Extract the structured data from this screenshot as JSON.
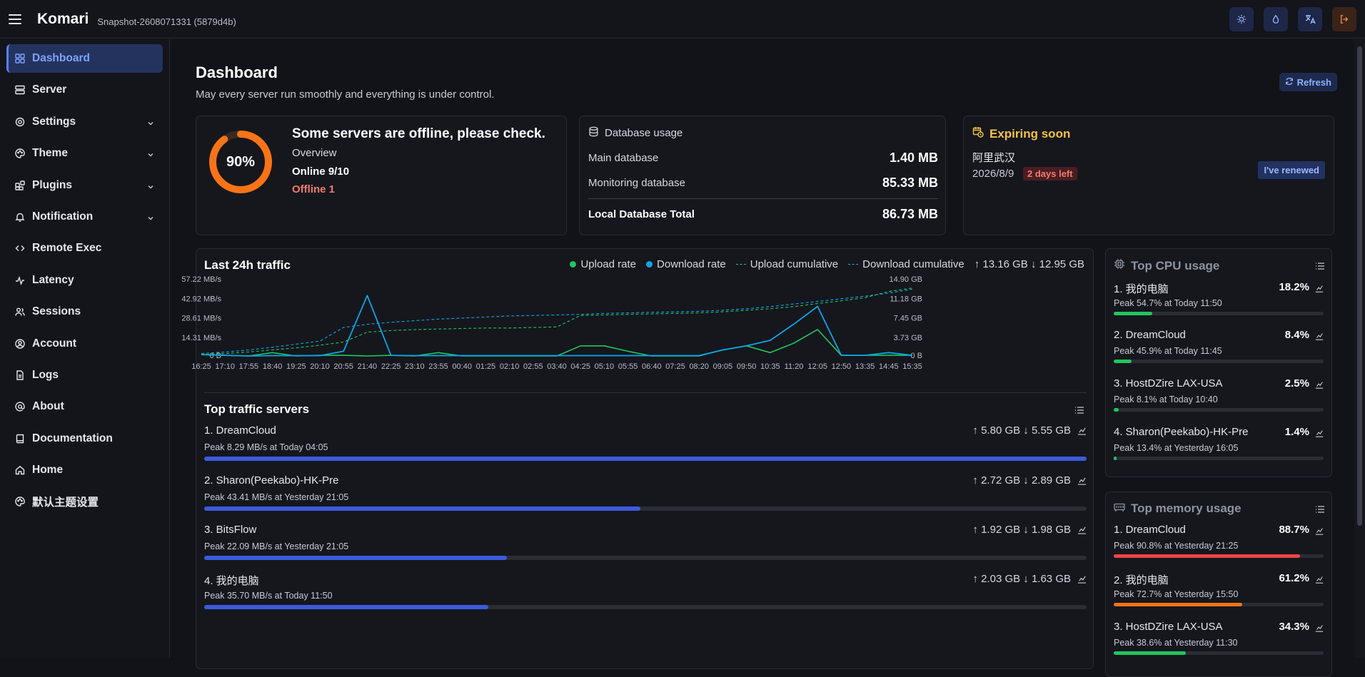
{
  "app": {
    "brand": "Komari",
    "snapshot": "Snapshot-2608071331 (5879d4b)"
  },
  "top_icons": [
    "sun-icon",
    "droplet-icon",
    "translate-icon",
    "logout-icon"
  ],
  "sidebar": {
    "items": [
      {
        "label": "Dashboard",
        "icon": "grid-icon",
        "active": true
      },
      {
        "label": "Server",
        "icon": "server-icon"
      },
      {
        "label": "Settings",
        "icon": "gear-icon",
        "expandable": true
      },
      {
        "label": "Theme",
        "icon": "palette-icon",
        "expandable": true
      },
      {
        "label": "Plugins",
        "icon": "puzzle-icon",
        "expandable": true
      },
      {
        "label": "Notification",
        "icon": "bell-icon",
        "expandable": true
      },
      {
        "label": "Remote Exec",
        "icon": "code-icon"
      },
      {
        "label": "Latency",
        "icon": "pulse-icon"
      },
      {
        "label": "Sessions",
        "icon": "users-icon"
      },
      {
        "label": "Account",
        "icon": "user-circle-icon"
      },
      {
        "label": "Logs",
        "icon": "file-icon"
      },
      {
        "label": "About",
        "icon": "at-icon"
      },
      {
        "label": "Documentation",
        "icon": "book-icon"
      },
      {
        "label": "Home",
        "icon": "home-icon"
      },
      {
        "label": "默认主题设置",
        "icon": "palette-icon"
      }
    ]
  },
  "header": {
    "title": "Dashboard",
    "subtitle": "May every server run smoothly and everything is under control.",
    "refresh_label": "Refresh"
  },
  "status_card": {
    "percent": 0.9,
    "percent_label": "90%",
    "heading": "Some servers are offline, please check.",
    "overview_label": "Overview",
    "online": "Online 9/10",
    "offline": "Offline 1",
    "ring_color": "#f97316"
  },
  "database_card": {
    "title": "Database usage",
    "rows": [
      {
        "label": "Main database",
        "value": "1.40 MB"
      },
      {
        "label": "Monitoring database",
        "value": "85.33 MB"
      }
    ],
    "total": {
      "label": "Local Database Total",
      "value": "86.73 MB"
    }
  },
  "expiring_card": {
    "title": "Expiring soon",
    "server": "阿里武汉",
    "date": "2026/8/9",
    "badge": "2 days left",
    "button": "I've renewed"
  },
  "traffic": {
    "title": "Last 24h traffic",
    "legend": {
      "upload_rate": "Upload rate",
      "download_rate": "Download rate",
      "upload_cumulative": "Upload cumulative",
      "download_cumulative": "Download cumulative",
      "totals": "↑ 13.16 GB ↓ 12.95 GB"
    },
    "colors": {
      "upload": "#22c55e",
      "download": "#0ea5e9"
    },
    "top_servers_title": "Top traffic servers",
    "top_servers": [
      {
        "name": "1. DreamCloud",
        "amount": "↑ 5.80 GB ↓ 5.55 GB",
        "peak": "Peak 8.29 MB/s at Today 04:05",
        "fraction": 1.0
      },
      {
        "name": "2. Sharon(Peekabo)-HK-Pre",
        "amount": "↑ 2.72 GB ↓ 2.89 GB",
        "peak": "Peak 43.41 MB/s at Yesterday 21:05",
        "fraction": 0.494
      },
      {
        "name": "3. BitsFlow",
        "amount": "↑ 1.92 GB ↓ 1.98 GB",
        "peak": "Peak 22.09 MB/s at Yesterday 21:05",
        "fraction": 0.343
      },
      {
        "name": "4. 我的电脑",
        "amount": "↑ 2.03 GB ↓ 1.63 GB",
        "peak": "Peak 35.70 MB/s at Today 11:50",
        "fraction": 0.322
      }
    ],
    "bar_color": "#3b5bdb"
  },
  "chart_data": {
    "type": "line",
    "x": [
      "16:25",
      "17:10",
      "17:55",
      "18:40",
      "19:25",
      "20:10",
      "20:55",
      "21:40",
      "22:25",
      "23:10",
      "23:55",
      "00:40",
      "01:25",
      "02:10",
      "02:55",
      "03:40",
      "04:25",
      "05:10",
      "05:55",
      "06:40",
      "07:25",
      "08:20",
      "09:05",
      "09:50",
      "10:35",
      "11:20",
      "12:05",
      "12:50",
      "13:35",
      "14:45",
      "15:35"
    ],
    "y_left_ticks": [
      "0 B",
      "14.31 MB/s",
      "28.61 MB/s",
      "42.92 MB/s",
      "57.22 MB/s"
    ],
    "y_right_ticks": [
      "0 B",
      "3.73 GB",
      "7.45 GB",
      "11.18 GB",
      "14.90 GB"
    ],
    "ylim_left": [
      0,
      57.22
    ],
    "ylim_right": [
      0,
      14.9
    ],
    "grid": false,
    "legend_position": "top-right",
    "series": [
      {
        "name": "Upload rate",
        "axis": "left",
        "values": [
          1.5,
          1,
          0.5,
          3,
          0.5,
          1,
          1,
          0.5,
          1,
          0.5,
          3,
          0.5,
          0.5,
          0.5,
          0.5,
          0.5,
          8,
          8,
          4,
          0.5,
          0.5,
          0.5,
          5,
          8,
          3,
          10,
          20,
          1,
          1,
          1,
          1
        ]
      },
      {
        "name": "Download rate",
        "axis": "left",
        "values": [
          1.5,
          1,
          0.5,
          0.8,
          0.8,
          0.8,
          4,
          45,
          1,
          0.8,
          0.8,
          0.8,
          0.8,
          0.8,
          0.8,
          0.8,
          0.8,
          0.8,
          0.8,
          0.8,
          0.8,
          0.8,
          5,
          8,
          12,
          24,
          37,
          1,
          1,
          3,
          1
        ]
      },
      {
        "name": "Upload cumulative",
        "axis": "right",
        "values": [
          0.4,
          0.6,
          0.9,
          1.3,
          1.7,
          2.2,
          2.8,
          4.7,
          5.0,
          5.2,
          5.3,
          5.4,
          5.5,
          5.5,
          5.6,
          5.7,
          7.9,
          8.0,
          8.1,
          8.2,
          8.3,
          8.4,
          8.6,
          8.9,
          9.2,
          9.6,
          10.2,
          10.7,
          11.3,
          12.5,
          13.16
        ]
      },
      {
        "name": "Download cumulative",
        "axis": "right",
        "values": [
          0.6,
          0.9,
          1.3,
          1.8,
          2.4,
          3.0,
          5.6,
          6.2,
          6.6,
          6.9,
          7.2,
          7.4,
          7.6,
          7.8,
          7.9,
          8.0,
          8.1,
          8.3,
          8.4,
          8.5,
          8.6,
          8.7,
          8.9,
          9.2,
          9.6,
          10.1,
          10.6,
          11.1,
          11.6,
          12.2,
          12.95
        ]
      }
    ]
  },
  "cpu_card": {
    "title": "Top CPU usage",
    "items": [
      {
        "name": "1. 我的电脑",
        "pct": "18.2%",
        "fraction": 0.182,
        "peak": "Peak 54.7% at Today 11:50",
        "color": "#22c55e"
      },
      {
        "name": "2. DreamCloud",
        "pct": "8.4%",
        "fraction": 0.084,
        "peak": "Peak 45.9% at Today 11:45",
        "color": "#22c55e"
      },
      {
        "name": "3. HostDZire LAX-USA",
        "pct": "2.5%",
        "fraction": 0.025,
        "peak": "Peak 8.1% at Today 10:40",
        "color": "#22c55e"
      },
      {
        "name": "4. Sharon(Peekabo)-HK-Pre",
        "pct": "1.4%",
        "fraction": 0.014,
        "peak": "Peak 13.4% at Yesterday 16:05",
        "color": "#22c55e"
      }
    ]
  },
  "memory_card": {
    "title": "Top memory usage",
    "items": [
      {
        "name": "1. DreamCloud",
        "pct": "88.7%",
        "fraction": 0.887,
        "peak": "Peak 90.8% at Yesterday 21:25",
        "color": "#ef4444"
      },
      {
        "name": "2. 我的电脑",
        "pct": "61.2%",
        "fraction": 0.612,
        "peak": "Peak 72.7% at Yesterday 15:50",
        "color": "#f97316"
      },
      {
        "name": "3. HostDZire LAX-USA",
        "pct": "34.3%",
        "fraction": 0.343,
        "peak": "Peak 38.6% at Yesterday 11:30",
        "color": "#22c55e"
      }
    ]
  }
}
